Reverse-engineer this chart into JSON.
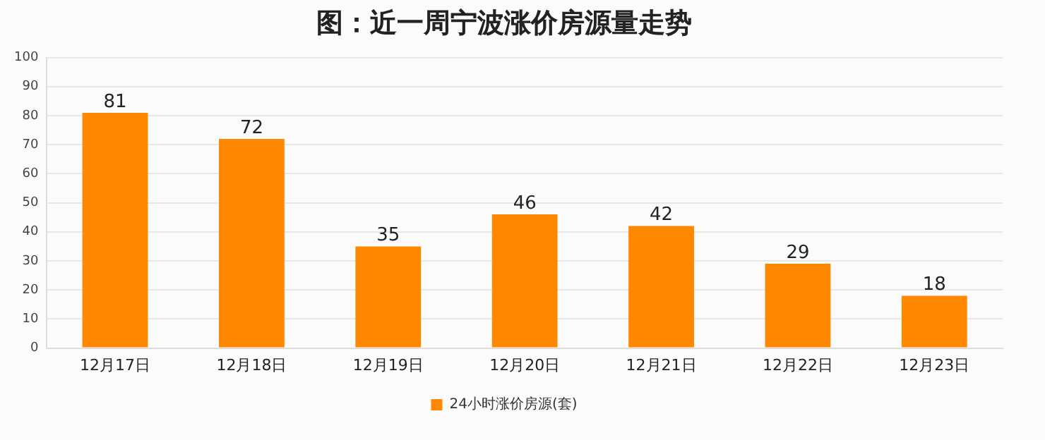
{
  "chart_data": {
    "type": "bar",
    "title": "图：近一周宁波涨价房源量走势",
    "categories": [
      "12月17日",
      "12月18日",
      "12月19日",
      "12月20日",
      "12月21日",
      "12月22日",
      "12月23日"
    ],
    "series": [
      {
        "name": "24小时涨价房源(套)",
        "color": "#ff8800",
        "values": [
          81,
          72,
          35,
          46,
          42,
          29,
          18
        ]
      }
    ],
    "ylim": [
      0,
      100
    ],
    "yticks": [
      0,
      10,
      20,
      30,
      40,
      50,
      60,
      70,
      80,
      90,
      100
    ],
    "grid": "y",
    "legend": "bottom",
    "data_labels": true
  }
}
